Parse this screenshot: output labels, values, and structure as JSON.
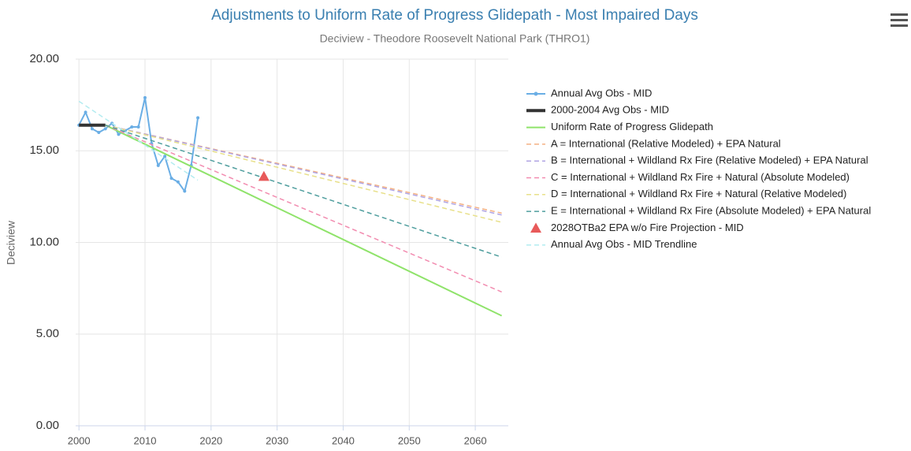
{
  "chart_data": {
    "type": "line",
    "title": "Adjustments to Uniform Rate of Progress Glidepath - Most Impaired Days",
    "subtitle": "Deciview - Theodore Roosevelt National Park (THRO1)",
    "y_label": "Deciview",
    "xlim": [
      1999.5,
      2065
    ],
    "xticks": [
      2000,
      2010,
      2020,
      2030,
      2040,
      2050,
      2060
    ],
    "ylim": [
      0,
      20
    ],
    "yticks": [
      {
        "value": 0,
        "label": "0.00"
      },
      {
        "value": 5,
        "label": "5.00"
      },
      {
        "value": 10,
        "label": "10.00"
      },
      {
        "value": 15,
        "label": "15.00"
      },
      {
        "value": 20,
        "label": "20.00"
      }
    ],
    "grid": true,
    "legend": "right",
    "series": [
      {
        "name": "Annual Avg Obs - MID",
        "color": "#6aaee5",
        "style": "solid",
        "marker": "circle",
        "x": [
          2000,
          2001,
          2002,
          2003,
          2004,
          2005,
          2006,
          2007,
          2008,
          2009,
          2010,
          2011,
          2012,
          2013,
          2014,
          2015,
          2016,
          2017,
          2018
        ],
        "values": [
          16.4,
          17.1,
          16.2,
          16.0,
          16.2,
          16.5,
          15.9,
          16.1,
          16.3,
          16.3,
          17.9,
          15.4,
          14.2,
          14.7,
          13.5,
          13.3,
          12.8,
          14.2,
          16.8
        ]
      },
      {
        "name": "2000-2004 Avg Obs - MID",
        "color": "#333333",
        "style": "thick",
        "x": [
          2000,
          2004
        ],
        "values": [
          16.4,
          16.4
        ]
      },
      {
        "name": "Uniform Rate of Progress Glidepath",
        "color": "#8fe36a",
        "style": "solid",
        "x": [
          2004,
          2064
        ],
        "values": [
          16.4,
          6.0
        ]
      },
      {
        "name": "A = International (Relative Modeled) + EPA Natural",
        "color": "#f4b183",
        "style": "dashed",
        "x": [
          2004,
          2064
        ],
        "values": [
          16.4,
          11.6
        ]
      },
      {
        "name": "B = International + Wildland Rx Fire (Relative Modeled) + EPA Natural",
        "color": "#b0a4e3",
        "style": "dashed",
        "x": [
          2004,
          2064
        ],
        "values": [
          16.4,
          11.5
        ]
      },
      {
        "name": "C = International + Wildland Rx Fire + Natural (Absolute Modeled)",
        "color": "#f28cb0",
        "style": "dashed",
        "x": [
          2004,
          2064
        ],
        "values": [
          16.4,
          7.3
        ]
      },
      {
        "name": "D = International + Wildland Rx Fire + Natural (Relative Modeled)",
        "color": "#e8e08a",
        "style": "dashed",
        "x": [
          2004,
          2064
        ],
        "values": [
          16.4,
          11.1
        ]
      },
      {
        "name": "E = International + Wildland Rx Fire (Absolute Modeled) + EPA Natural",
        "color": "#4f9e9e",
        "style": "dashed",
        "x": [
          2004,
          2064
        ],
        "values": [
          16.4,
          9.2
        ]
      },
      {
        "name": "2028OTBa2 EPA w/o Fire Projection - MID",
        "color": "#e85a5a",
        "style": "none",
        "marker": "triangle",
        "x": [
          2028
        ],
        "values": [
          13.6
        ]
      },
      {
        "name": "Annual Avg Obs - MID Trendline",
        "color": "#b3ecf0",
        "style": "dashed",
        "x": [
          2000,
          2018
        ],
        "values": [
          17.7,
          13.4
        ]
      }
    ]
  }
}
